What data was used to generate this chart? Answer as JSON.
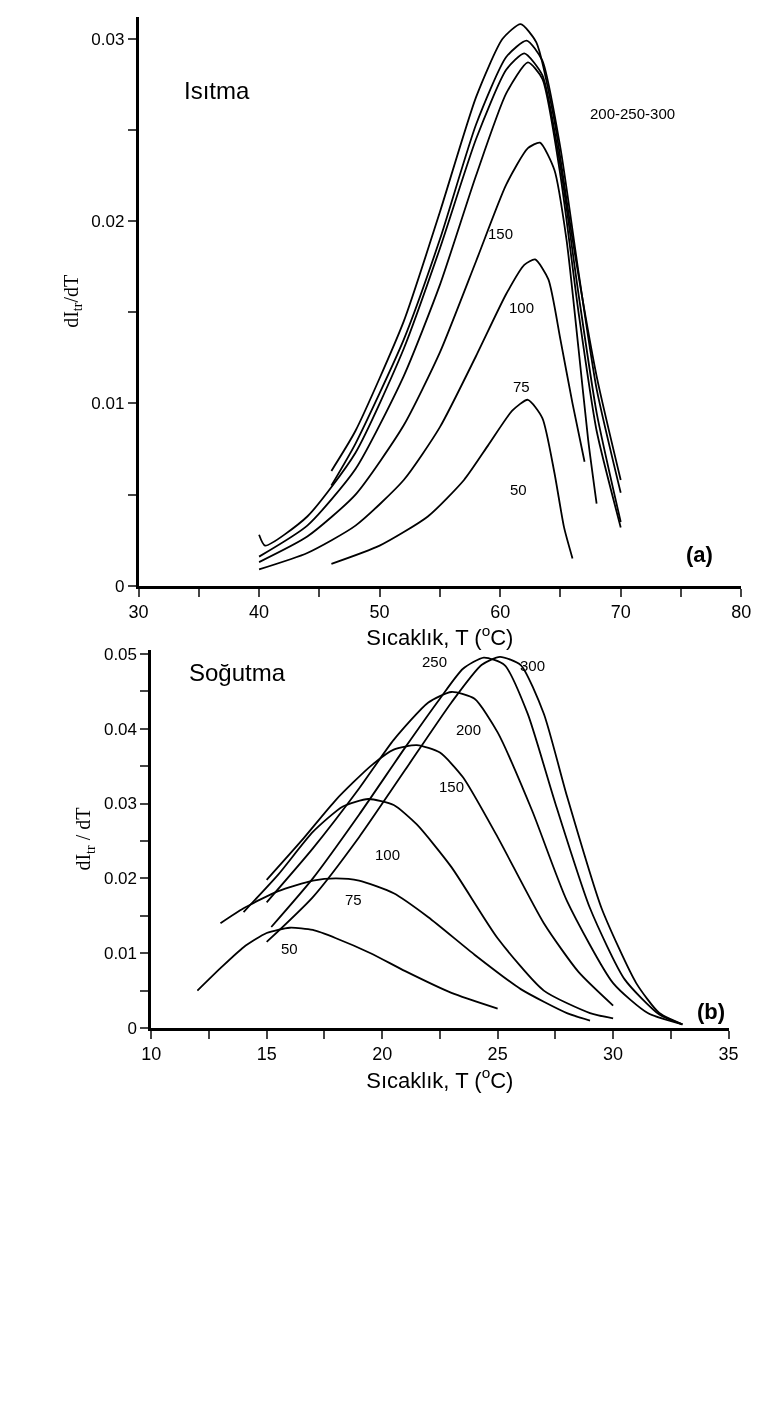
{
  "chart_data": [
    {
      "type": "line",
      "xlabel": "Sıcaklık, T ($^{o}$C)",
      "ylabel": "dI$_{tr}$/dT",
      "xlim": [
        30,
        80
      ],
      "xticks": [
        30,
        {
          "value": 35,
          "label": null
        },
        40,
        {
          "value": 45,
          "label": null
        },
        50,
        {
          "value": 55,
          "label": null
        },
        60,
        {
          "value": 65,
          "label": null
        },
        70,
        {
          "value": 75,
          "label": null
        },
        80
      ],
      "ylim": [
        0,
        0.0312
      ],
      "yticks": [
        0,
        {
          "value": 0.005,
          "label": null
        },
        0.01,
        {
          "value": 0.015,
          "label": null
        },
        0.02,
        {
          "value": 0.025,
          "label": null
        },
        0.03
      ],
      "marker": "none",
      "line_style": "solid",
      "series": [
        {
          "color": "#000000",
          "x": [
            46,
            50,
            54,
            57,
            59,
            61,
            62.3,
            63.5,
            64.5,
            65.3,
            66
          ],
          "values": [
            0.0012,
            0.0022,
            0.0038,
            0.0058,
            0.0077,
            0.0096,
            0.0102,
            0.0092,
            0.0062,
            0.0032,
            0.0015
          ]
        },
        {
          "color": "#000000",
          "x": [
            40,
            44,
            48,
            52,
            55,
            58,
            60.5,
            62,
            62.9,
            64,
            65,
            66,
            67
          ],
          "values": [
            0.0009,
            0.0018,
            0.0033,
            0.0058,
            0.0087,
            0.0126,
            0.016,
            0.0176,
            0.0179,
            0.0168,
            0.0135,
            0.01,
            0.0068
          ]
        },
        {
          "color": "#000000",
          "x": [
            40,
            44,
            48,
            52,
            55,
            58,
            60.5,
            62.3,
            63.3,
            64.5,
            65.5,
            66.5,
            67.3,
            68
          ],
          "values": [
            0.0013,
            0.0027,
            0.005,
            0.0088,
            0.0128,
            0.0178,
            0.022,
            0.024,
            0.0243,
            0.0228,
            0.019,
            0.013,
            0.008,
            0.0045
          ]
        },
        {
          "color": "#000000",
          "x": [
            40,
            44,
            48,
            52,
            55,
            58,
            60.5,
            62.3,
            63.5,
            65,
            66.5,
            68,
            70
          ],
          "values": [
            0.0016,
            0.0033,
            0.0064,
            0.0115,
            0.0165,
            0.0225,
            0.027,
            0.0287,
            0.0278,
            0.0225,
            0.015,
            0.0085,
            0.0032
          ]
        },
        {
          "color": "#000000",
          "x": [
            40,
            40.5,
            44,
            48,
            52,
            55,
            58,
            60.5,
            62,
            63.5,
            65,
            66.5,
            68,
            70
          ],
          "values": [
            0.0028,
            0.0022,
            0.0038,
            0.0073,
            0.013,
            0.0185,
            0.0245,
            0.0283,
            0.0292,
            0.028,
            0.023,
            0.016,
            0.0095,
            0.0035
          ]
        },
        {
          "color": "#000000",
          "x": [
            46,
            48,
            52,
            55,
            58,
            60.5,
            62.2,
            63.5,
            65,
            66.5,
            68,
            70
          ],
          "values": [
            0.0055,
            0.0078,
            0.0135,
            0.019,
            0.0253,
            0.029,
            0.0299,
            0.0288,
            0.024,
            0.0172,
            0.0108,
            0.0051
          ]
        },
        {
          "color": "#000000",
          "x": [
            46,
            48,
            52,
            55,
            58,
            60.2,
            61.7,
            63,
            64.5,
            66,
            68,
            70
          ],
          "values": [
            0.0063,
            0.0085,
            0.0145,
            0.0205,
            0.0268,
            0.03,
            0.0308,
            0.0298,
            0.0255,
            0.019,
            0.0115,
            0.0058
          ]
        }
      ],
      "annotations": [
        "Isıtma",
        "200-250-300",
        "150",
        "100",
        "75",
        "50",
        "(a)"
      ]
    },
    {
      "type": "line",
      "xlabel": "Sıcaklık, T ($^{o}$C)",
      "ylabel": "dI$_{tr}$ / dT",
      "xlim": [
        10,
        35
      ],
      "xticks": [
        10,
        {
          "value": 12.5,
          "label": null
        },
        15,
        {
          "value": 17.5,
          "label": null
        },
        20,
        {
          "value": 22.5,
          "label": null
        },
        25,
        {
          "value": 27.5,
          "label": null
        },
        30,
        {
          "value": 32.5,
          "label": null
        },
        35
      ],
      "ylim": [
        0,
        0.0505
      ],
      "yticks": [
        0,
        {
          "value": 0.005,
          "label": null
        },
        0.01,
        {
          "value": 0.015,
          "label": null
        },
        0.02,
        {
          "value": 0.025,
          "label": null
        },
        0.03,
        {
          "value": 0.035,
          "label": null
        },
        0.04,
        {
          "value": 0.045,
          "label": null
        },
        0.05
      ],
      "marker": "none",
      "line_style": "solid",
      "series": [
        {
          "color": "#000000",
          "x": [
            12,
            13,
            14,
            15,
            16,
            17,
            18,
            19.5,
            21,
            23,
            25
          ],
          "values": [
            0.005,
            0.008,
            0.0108,
            0.0127,
            0.0134,
            0.0131,
            0.012,
            0.01,
            0.0076,
            0.0047,
            0.0026
          ]
        },
        {
          "color": "#000000",
          "x": [
            13,
            14,
            15.5,
            17,
            18,
            19,
            20.5,
            22,
            24,
            26,
            28,
            29
          ],
          "values": [
            0.014,
            0.016,
            0.0183,
            0.0197,
            0.02,
            0.0197,
            0.018,
            0.0148,
            0.0098,
            0.0052,
            0.002,
            0.001
          ]
        },
        {
          "color": "#000000",
          "x": [
            14,
            15.5,
            17,
            18.3,
            19.4,
            20.5,
            21.5,
            23,
            25,
            27,
            29,
            30
          ],
          "values": [
            0.0155,
            0.0205,
            0.0262,
            0.0296,
            0.0306,
            0.0298,
            0.0272,
            0.0215,
            0.012,
            0.005,
            0.002,
            0.0013
          ]
        },
        {
          "color": "#000000",
          "x": [
            15,
            16.5,
            18,
            19.5,
            20.5,
            21.5,
            22.5,
            23.5,
            25,
            27,
            28.5,
            30
          ],
          "values": [
            0.0198,
            0.025,
            0.0305,
            0.035,
            0.0372,
            0.0378,
            0.0368,
            0.0335,
            0.0255,
            0.014,
            0.0075,
            0.003
          ]
        },
        {
          "color": "#000000",
          "x": [
            15,
            17,
            19,
            20.5,
            22,
            23,
            24,
            25,
            26.5,
            28,
            30,
            31.5,
            33
          ],
          "values": [
            0.0168,
            0.024,
            0.032,
            0.0385,
            0.0435,
            0.0449,
            0.044,
            0.0395,
            0.029,
            0.017,
            0.006,
            0.002,
            0.0005
          ]
        },
        {
          "color": "#000000",
          "x": [
            15.2,
            17,
            19,
            21,
            22.5,
            23.5,
            24.4,
            25.3,
            26.3,
            27.5,
            29,
            30.5,
            32,
            33
          ],
          "values": [
            0.0135,
            0.02,
            0.0285,
            0.0375,
            0.044,
            0.048,
            0.0495,
            0.0485,
            0.042,
            0.03,
            0.016,
            0.0065,
            0.0018,
            0.0005
          ]
        },
        {
          "color": "#000000",
          "x": [
            15,
            17,
            19,
            21,
            23,
            24.3,
            25.1,
            26,
            27,
            28,
            29.5,
            31,
            32,
            33
          ],
          "values": [
            0.0115,
            0.0175,
            0.0255,
            0.0345,
            0.0435,
            0.0485,
            0.0496,
            0.0485,
            0.042,
            0.031,
            0.016,
            0.006,
            0.002,
            0.0005
          ]
        }
      ],
      "annotations": [
        "Soğutma",
        "250",
        "300",
        "200",
        "150",
        "100",
        "75",
        "50",
        "(b)"
      ]
    }
  ]
}
